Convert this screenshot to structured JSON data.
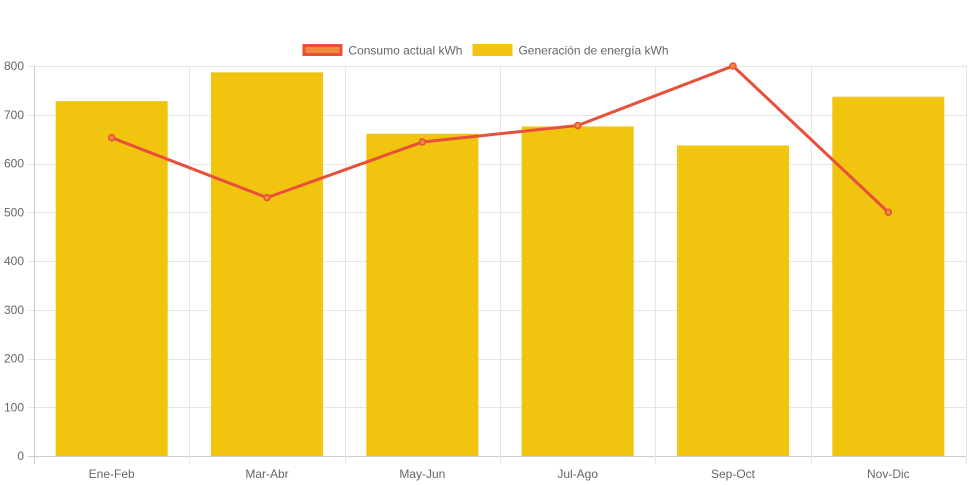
{
  "chart_data": {
    "type": "bar",
    "categories": [
      "Ene-Feb",
      "Mar-Abr",
      "May-Jun",
      "Jul-Ago",
      "Sep-Oct",
      "Nov-Dic"
    ],
    "series": [
      {
        "name": "Consumo actual kWh",
        "type": "line",
        "values": [
          653,
          530,
          644,
          678,
          800,
          500
        ],
        "color": "#e8503a",
        "point_color": "#f08a3c"
      },
      {
        "name": "Generación de energía kWh",
        "type": "bar",
        "values": [
          728,
          787,
          661,
          676,
          637,
          737
        ],
        "color": "#f1c40f"
      }
    ],
    "legend": {
      "position": "top",
      "items": [
        {
          "label": "Consumo actual kWh",
          "fill": "#f08a3c",
          "stroke": "#e8503a"
        },
        {
          "label": "Generación de energía kWh",
          "fill": "#f1c40f",
          "stroke": "#f1c40f"
        }
      ]
    },
    "ylim": [
      0,
      800
    ],
    "yticks": [
      0,
      100,
      200,
      300,
      400,
      500,
      600,
      700,
      800
    ],
    "grid": true,
    "grid_color": "#e6e6e6",
    "axis_color": "#cccccc",
    "text_color": "#666666"
  }
}
